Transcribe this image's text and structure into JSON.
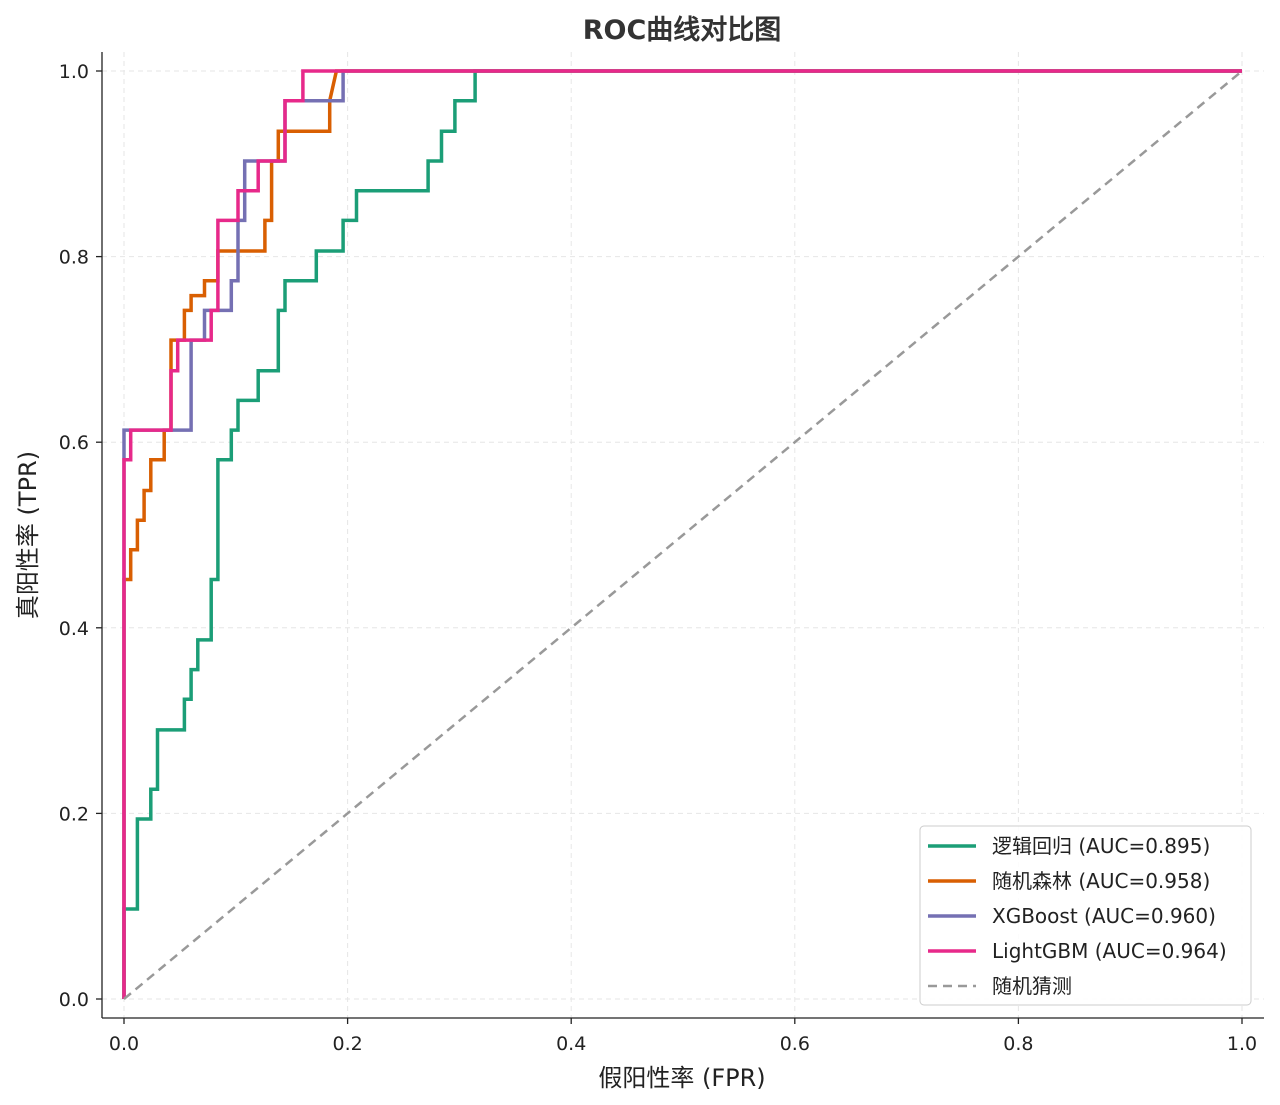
{
  "chart_data": {
    "type": "line",
    "title": "ROC曲线对比图",
    "xlabel": "假阳性率 (FPR)",
    "ylabel": "真阳性率 (TPR)",
    "xlim": [
      0.0,
      1.0
    ],
    "ylim": [
      0.0,
      1.0
    ],
    "xticks": [
      "0.0",
      "0.2",
      "0.4",
      "0.6",
      "0.8",
      "1.0"
    ],
    "yticks": [
      "0.0",
      "0.2",
      "0.4",
      "0.6",
      "0.8",
      "1.0"
    ],
    "grid": true,
    "legend_position": "lower-right",
    "series": [
      {
        "name": "逻辑回归 (AUC=0.895)",
        "color": "#1b9e77",
        "style": "solid",
        "x": [
          0,
          0,
          0.002,
          0.002,
          0.012,
          0.012,
          0.024,
          0.024,
          0.03,
          0.03,
          0.054,
          0.054,
          0.06,
          0.06,
          0.066,
          0.066,
          0.078,
          0.078,
          0.084,
          0.084,
          0.096,
          0.096,
          0.102,
          0.102,
          0.12,
          0.12,
          0.138,
          0.138,
          0.144,
          0.144,
          0.172,
          0.172,
          0.196,
          0.196,
          0.208,
          0.208,
          0.272,
          0.272,
          0.284,
          0.284,
          0.296,
          0.296,
          0.314,
          0.314,
          1.0
        ],
        "y": [
          0,
          0.097,
          0.097,
          0.097,
          0.097,
          0.194,
          0.194,
          0.226,
          0.226,
          0.29,
          0.29,
          0.323,
          0.323,
          0.355,
          0.355,
          0.387,
          0.387,
          0.452,
          0.452,
          0.581,
          0.581,
          0.613,
          0.613,
          0.645,
          0.645,
          0.677,
          0.677,
          0.742,
          0.742,
          0.774,
          0.774,
          0.806,
          0.806,
          0.839,
          0.839,
          0.871,
          0.871,
          0.903,
          0.903,
          0.935,
          0.935,
          0.968,
          0.968,
          1.0,
          1.0
        ]
      },
      {
        "name": "随机森林 (AUC=0.958)",
        "color": "#d95f02",
        "style": "solid",
        "x": [
          0,
          0,
          0.006,
          0.006,
          0.012,
          0.012,
          0.018,
          0.018,
          0.024,
          0.024,
          0.036,
          0.036,
          0.042,
          0.042,
          0.054,
          0.054,
          0.06,
          0.06,
          0.072,
          0.072,
          0.084,
          0.084,
          0.126,
          0.126,
          0.132,
          0.132,
          0.138,
          0.138,
          0.15,
          0.15,
          0.184,
          0.184,
          0.19,
          1.0
        ],
        "y": [
          0,
          0.452,
          0.452,
          0.484,
          0.484,
          0.516,
          0.516,
          0.548,
          0.548,
          0.581,
          0.581,
          0.613,
          0.613,
          0.71,
          0.71,
          0.742,
          0.742,
          0.758,
          0.758,
          0.774,
          0.774,
          0.806,
          0.806,
          0.839,
          0.839,
          0.903,
          0.903,
          0.935,
          0.935,
          0.935,
          0.935,
          0.968,
          1.0,
          1.0
        ]
      },
      {
        "name": "XGBoost (AUC=0.960)",
        "color": "#7570b3",
        "style": "solid",
        "x": [
          0,
          0,
          0.006,
          0.006,
          0.036,
          0.036,
          0.06,
          0.06,
          0.072,
          0.072,
          0.096,
          0.096,
          0.102,
          0.102,
          0.108,
          0.108,
          0.138,
          0.138,
          0.144,
          0.144,
          0.15,
          0.15,
          0.196,
          0.196,
          1.0
        ],
        "y": [
          0,
          0.613,
          0.613,
          0.613,
          0.613,
          0.613,
          0.613,
          0.71,
          0.71,
          0.742,
          0.742,
          0.774,
          0.774,
          0.839,
          0.839,
          0.903,
          0.903,
          0.903,
          0.903,
          0.968,
          0.968,
          0.968,
          0.968,
          1.0,
          1.0
        ]
      },
      {
        "name": "LightGBM (AUC=0.964)",
        "color": "#e7298a",
        "style": "solid",
        "x": [
          0,
          0,
          0.004,
          0.004,
          0.006,
          0.006,
          0.042,
          0.042,
          0.048,
          0.048,
          0.078,
          0.078,
          0.084,
          0.084,
          0.102,
          0.102,
          0.12,
          0.12,
          0.138,
          0.138,
          0.144,
          0.144,
          0.156,
          0.156,
          0.16,
          0.16,
          1.0
        ],
        "y": [
          0,
          0.581,
          0.581,
          0.581,
          0.581,
          0.613,
          0.613,
          0.677,
          0.677,
          0.71,
          0.71,
          0.742,
          0.742,
          0.839,
          0.839,
          0.871,
          0.871,
          0.903,
          0.903,
          0.903,
          0.903,
          0.968,
          0.968,
          0.968,
          0.968,
          1.0,
          1.0
        ]
      },
      {
        "name": "随机猜测",
        "color": "#999999",
        "style": "dashed",
        "x": [
          0,
          1.0
        ],
        "y": [
          0,
          1.0
        ]
      }
    ]
  }
}
